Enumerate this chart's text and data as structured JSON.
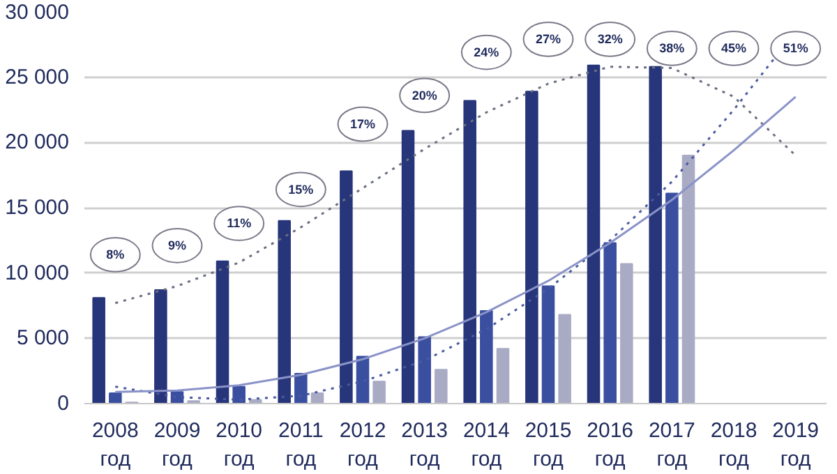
{
  "chart_data": {
    "type": "bar",
    "categories": [
      "2008\nгод",
      "2009\nгод",
      "2010\nгод",
      "2011\nгод",
      "2012\nгод",
      "2013\nгод",
      "2014\nгод",
      "2015\nгод",
      "2016\nгод",
      "2017\nгод",
      "2018\nгод",
      "2019\nгод"
    ],
    "series": [
      {
        "color": "#27357a",
        "values": [
          8100,
          8700,
          10900,
          14000,
          17800,
          20900,
          23200,
          23900,
          25900,
          25800,
          null,
          null
        ]
      },
      {
        "color": "#3a4fa0",
        "values": [
          800,
          900,
          1300,
          2300,
          3600,
          5100,
          7100,
          9000,
          12300,
          16100,
          null,
          null
        ]
      },
      {
        "color": "#a9abc4",
        "values": [
          100,
          200,
          300,
          800,
          1700,
          2600,
          4200,
          6800,
          10700,
          19000,
          null,
          null
        ]
      },
      {
        "type": "line",
        "color": "#6a6f80",
        "line_style": "dotted",
        "values": [
          7700,
          9000,
          10800,
          13500,
          16500,
          19500,
          22300,
          24500,
          25800,
          25700,
          23500,
          19000
        ]
      },
      {
        "type": "line",
        "color": "#4a5aa0",
        "line_style": "dotted",
        "values": [
          1300,
          500,
          300,
          600,
          1700,
          3300,
          5700,
          8800,
          12500,
          17000,
          22500,
          28500
        ]
      },
      {
        "type": "line",
        "color": "#8a93c8",
        "line_style": "solid",
        "values": [
          900,
          1000,
          1400,
          2200,
          3400,
          5000,
          7000,
          9400,
          12300,
          15600,
          19400,
          23500
        ]
      }
    ],
    "ylim": [
      0,
      30000
    ],
    "yticks": [
      {
        "value": 0,
        "label": "0"
      },
      {
        "value": 5000,
        "label": "5 000"
      },
      {
        "value": 10000,
        "label": "10 000"
      },
      {
        "value": 15000,
        "label": "15 000"
      },
      {
        "value": 20000,
        "label": "20 000"
      },
      {
        "value": 25000,
        "label": "25 000"
      },
      {
        "value": 30000,
        "label": "30 000"
      }
    ],
    "grid": "y",
    "annotations": [
      {
        "text": "8%",
        "x": "2008\nгод",
        "y": 11400
      },
      {
        "text": "9%",
        "x": "2009\nгод",
        "y": 12100
      },
      {
        "text": "11%",
        "x": "2010\nгод",
        "y": 13800
      },
      {
        "text": "15%",
        "x": "2011\nгод",
        "y": 16400
      },
      {
        "text": "17%",
        "x": "2012\nгод",
        "y": 21400
      },
      {
        "text": "20%",
        "x": "2013\nгод",
        "y": 23600
      },
      {
        "text": "24%",
        "x": "2014\nгод",
        "y": 26900
      },
      {
        "text": "27%",
        "x": "2015\nгод",
        "y": 27900
      },
      {
        "text": "32%",
        "x": "2016\nгод",
        "y": 27900
      },
      {
        "text": "38%",
        "x": "2017\nгод",
        "y": 27200
      },
      {
        "text": "45%",
        "x": "2018\nгод",
        "y": 27200
      },
      {
        "text": "51%",
        "x": "2019\nгод",
        "y": 27200
      }
    ]
  }
}
